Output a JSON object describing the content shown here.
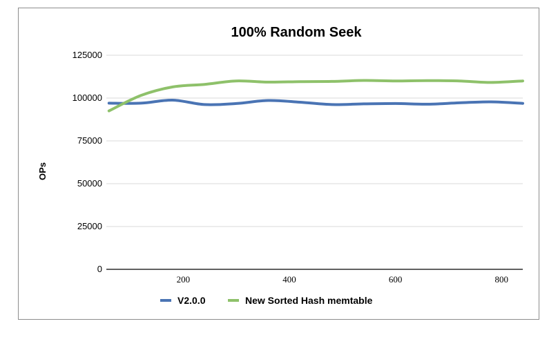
{
  "chart_data": {
    "type": "line",
    "title": "100% Random Seek",
    "xlabel": "",
    "ylabel": "OPs",
    "ylim": [
      0,
      125000
    ],
    "xlim": [
      55,
      840
    ],
    "yticks": [
      0,
      25000,
      50000,
      75000,
      100000,
      125000
    ],
    "ytick_labels": [
      "0",
      "25000",
      "50000",
      "75000",
      "100000",
      "125000"
    ],
    "xticks": [
      200,
      400,
      600,
      800
    ],
    "xtick_labels": [
      "200",
      "400",
      "600",
      "800"
    ],
    "grid": "horizontal",
    "legend_position": "bottom",
    "series": [
      {
        "name": "V2.0.0",
        "color": "#4a74b4",
        "x": [
          60,
          120,
          180,
          240,
          300,
          360,
          420,
          480,
          540,
          600,
          660,
          720,
          780,
          840
        ],
        "values": [
          97000,
          97000,
          98800,
          96200,
          96800,
          98600,
          97600,
          96200,
          96600,
          96800,
          96400,
          97200,
          97800,
          96900
        ]
      },
      {
        "name": "New Sorted Hash memtable",
        "color": "#8ec16a",
        "x": [
          60,
          120,
          180,
          240,
          300,
          360,
          420,
          480,
          540,
          600,
          660,
          720,
          780,
          840
        ],
        "values": [
          92500,
          101500,
          106500,
          108000,
          110000,
          109300,
          109600,
          109700,
          110300,
          110000,
          110200,
          110000,
          109100,
          110000
        ]
      }
    ]
  }
}
